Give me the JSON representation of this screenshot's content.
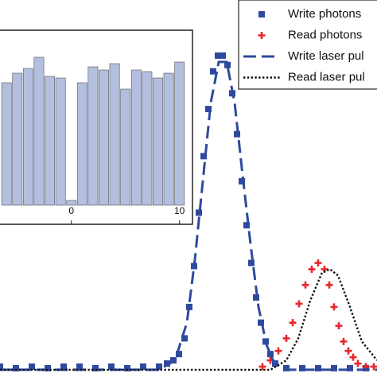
{
  "chart_data": [
    {
      "type": "scatter-line",
      "xlim": [
        0,
        474
      ],
      "ylim": [
        -0.023,
        1.177
      ],
      "legend": "upper right",
      "series": [
        {
          "name": "Write photons",
          "color": "#2e4a9e",
          "style": "square",
          "x": [
            0,
            20,
            40,
            60,
            80,
            100,
            120,
            140,
            160,
            180,
            200,
            210,
            218,
            225,
            232,
            238,
            244,
            250,
            256,
            262,
            268,
            274,
            280,
            286,
            292,
            298,
            304,
            310,
            316,
            322,
            328,
            334,
            340,
            346,
            360,
            380,
            400,
            420,
            440,
            460
          ],
          "values": [
            0.01,
            0.005,
            0.01,
            0.005,
            0.01,
            0.01,
            0.005,
            0.01,
            0.005,
            0.01,
            0.01,
            0.02,
            0.03,
            0.05,
            0.1,
            0.2,
            0.33,
            0.5,
            0.68,
            0.83,
            0.95,
            1.0,
            1.0,
            0.97,
            0.88,
            0.75,
            0.6,
            0.46,
            0.34,
            0.23,
            0.15,
            0.09,
            0.05,
            0.02,
            0.005,
            0.005,
            0.005,
            0.005,
            0.005,
            0.005
          ]
        },
        {
          "name": "Read photons",
          "color": "#e8262a",
          "style": "plus",
          "x": [
            330,
            340,
            350,
            360,
            368,
            376,
            384,
            392,
            400,
            408,
            414,
            420,
            426,
            432,
            438,
            444,
            450,
            460,
            470
          ],
          "values": [
            0.01,
            0.03,
            0.06,
            0.1,
            0.15,
            0.21,
            0.27,
            0.32,
            0.34,
            0.32,
            0.27,
            0.2,
            0.14,
            0.09,
            0.06,
            0.04,
            0.02,
            0.01,
            0.01
          ]
        },
        {
          "name": "Write laser pul",
          "color": "#2e4a9e",
          "style": "dash",
          "x": [
            0,
            200,
            220,
            235,
            245,
            255,
            265,
            275,
            285,
            295,
            305,
            315,
            325,
            335,
            345,
            360,
            474
          ],
          "values": [
            0,
            0,
            0.03,
            0.15,
            0.35,
            0.6,
            0.85,
            0.98,
            0.98,
            0.85,
            0.62,
            0.4,
            0.2,
            0.08,
            0.02,
            0,
            0
          ]
        },
        {
          "name": "Read laser pul",
          "color": "#111111",
          "style": "dot",
          "x": [
            0,
            340,
            360,
            375,
            390,
            405,
            415,
            425,
            440,
            455,
            474
          ],
          "values": [
            0,
            0,
            0.03,
            0.1,
            0.22,
            0.31,
            0.32,
            0.3,
            0.2,
            0.09,
            0.03
          ]
        }
      ]
    },
    {
      "type": "bar",
      "xlim": [
        -6.6,
        11.2
      ],
      "ylim": [
        0,
        1.09
      ],
      "xticks": [
        0,
        10
      ],
      "color": "#b4bedf",
      "x": [
        -6,
        -5,
        -4,
        -3,
        -2,
        -1,
        0,
        1,
        2,
        3,
        4,
        5,
        6,
        7,
        8,
        9,
        10
      ],
      "values": [
        0.77,
        0.83,
        0.86,
        0.93,
        0.81,
        0.8,
        0.03,
        0.77,
        0.87,
        0.85,
        0.89,
        0.73,
        0.85,
        0.84,
        0.8,
        0.83,
        0.9
      ]
    }
  ]
}
